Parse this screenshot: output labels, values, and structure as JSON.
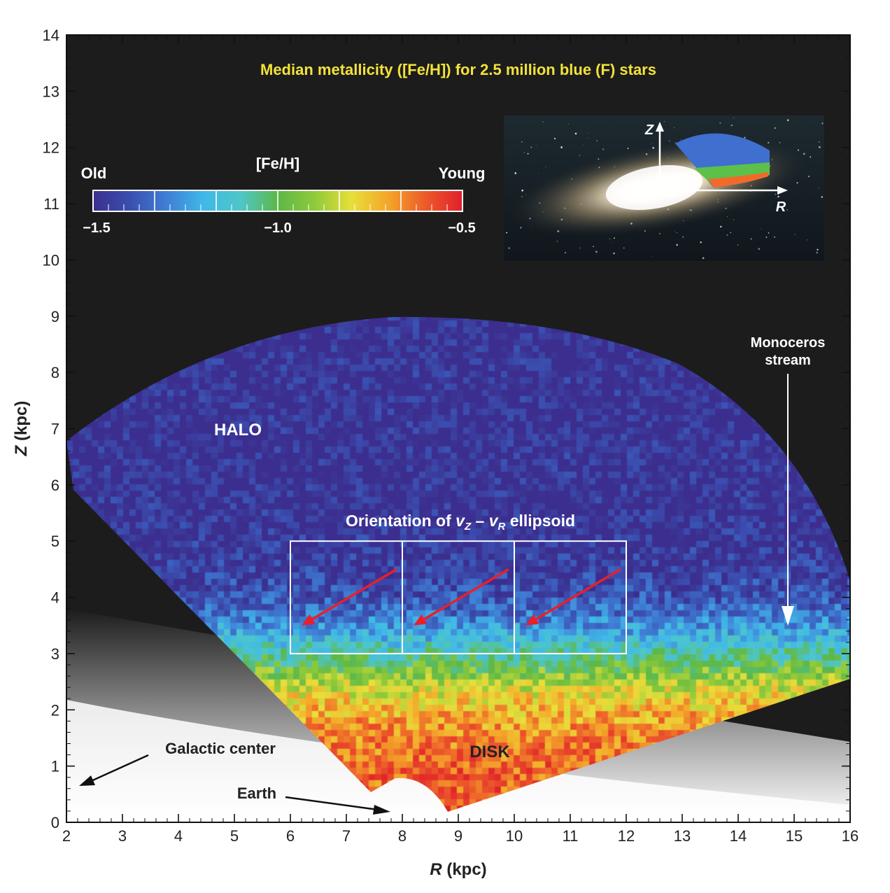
{
  "chart_data": {
    "type": "heatmap",
    "title": "Median metallicity ([Fe/H]) for 2.5 million blue (F) stars",
    "xlabel_var": "R",
    "xlabel_unit": " (kpc)",
    "ylabel_var": "Z",
    "ylabel_unit": " (kpc)",
    "xlim": [
      2,
      16
    ],
    "ylim": [
      0,
      14
    ],
    "x_ticks": [
      "2",
      "3",
      "4",
      "5",
      "6",
      "7",
      "8",
      "9",
      "10",
      "11",
      "12",
      "13",
      "14",
      "15",
      "16"
    ],
    "y_ticks": [
      "0",
      "1",
      "2",
      "3",
      "4",
      "5",
      "6",
      "7",
      "8",
      "9",
      "10",
      "11",
      "12",
      "13",
      "14"
    ],
    "colorbar": {
      "label": "[Fe/H]",
      "range": [
        -1.5,
        -0.5
      ],
      "tick_labels": [
        "−1.5",
        "−1.0",
        "−0.5"
      ],
      "left_label": "Old",
      "right_label": "Young",
      "colors": [
        "#3b2f8f",
        "#3a4fb0",
        "#3f7fd6",
        "#3fb9e8",
        "#4fc6c8",
        "#5cb848",
        "#8fca3a",
        "#e8df3a",
        "#f4a52a",
        "#ec5a2a",
        "#e0202a"
      ]
    },
    "field_model": {
      "low": -1.5,
      "high": -0.6,
      "transition_z": 3.0,
      "transition_width": 1.6
    },
    "region_labels": {
      "halo": "HALO",
      "disk": "DISK",
      "monoceros_line1": "Monoceros",
      "monoceros_line2": "stream",
      "galactic_center": "Galactic center",
      "earth": "Earth"
    },
    "ellipsoid": {
      "label_prefix": "Orientation of ",
      "var_z": "v",
      "sub_z": "Z",
      "dash": " – ",
      "var_r": "v",
      "sub_r": "R",
      "label_suffix": " ellipsoid",
      "x_range": [
        6,
        12
      ],
      "z_range": [
        3,
        5
      ],
      "box_edges_r": [
        6,
        8,
        10,
        12
      ],
      "arrows": [
        {
          "from": [
            7.9,
            4.5
          ],
          "to": [
            6.2,
            3.5
          ]
        },
        {
          "from": [
            9.9,
            4.5
          ],
          "to": [
            8.2,
            3.5
          ]
        },
        {
          "from": [
            11.9,
            4.5
          ],
          "to": [
            10.2,
            3.5
          ]
        }
      ],
      "arrow_color": "#e8202a"
    },
    "inset": {
      "z_label": "Z",
      "r_label": "R"
    }
  }
}
